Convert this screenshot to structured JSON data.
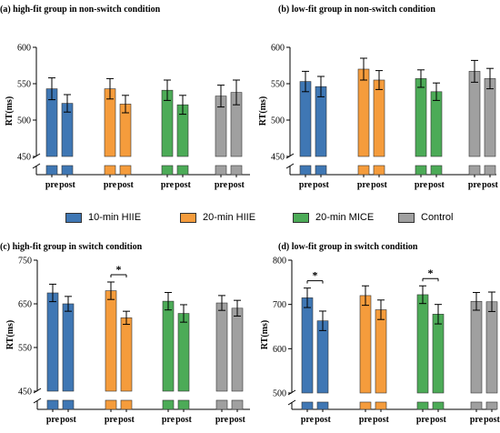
{
  "legend": {
    "items": [
      {
        "label": "10-min HIIE",
        "color": "#3f77b4"
      },
      {
        "label": "20-min HIIE",
        "color": "#f59c3c"
      },
      {
        "label": "20-min MICE",
        "color": "#4cab57"
      },
      {
        "label": "Control",
        "color": "#a0a0a0"
      }
    ]
  },
  "chart_data": [
    {
      "type": "bar",
      "title": "(a) high-fit group in non-switch condition",
      "ylabel": "RT(ms)",
      "ylim": [
        450,
        600
      ],
      "yticks": [
        450,
        500,
        550,
        600
      ],
      "x_tick_labels": [
        "pre",
        "post"
      ],
      "categories": [
        "10-min HIIE",
        "20-min HIIE",
        "20-min MICE",
        "Control"
      ],
      "series": [
        {
          "name": "pre",
          "values": [
            543,
            543,
            541,
            533
          ],
          "errors": [
            15,
            14,
            14,
            15
          ]
        },
        {
          "name": "post",
          "values": [
            523,
            522,
            521,
            538
          ],
          "errors": [
            12,
            12,
            13,
            17
          ]
        }
      ],
      "significance": []
    },
    {
      "type": "bar",
      "title": "(b) low-fit group in non-switch condition",
      "ylabel": "RT(ms)",
      "ylim": [
        450,
        600
      ],
      "yticks": [
        450,
        500,
        550,
        600
      ],
      "x_tick_labels": [
        "pre",
        "post"
      ],
      "categories": [
        "10-min HIIE",
        "20-min HIIE",
        "20-min MICE",
        "Control"
      ],
      "series": [
        {
          "name": "pre",
          "values": [
            553,
            570,
            557,
            567
          ],
          "errors": [
            14,
            15,
            12,
            15
          ]
        },
        {
          "name": "post",
          "values": [
            546,
            555,
            539,
            557
          ],
          "errors": [
            14,
            13,
            12,
            14
          ]
        }
      ],
      "significance": []
    },
    {
      "type": "bar",
      "title": "(c) high-fit group in switch condition",
      "ylabel": "RT(ms)",
      "ylim": [
        450,
        750
      ],
      "yticks": [
        450,
        550,
        650,
        750
      ],
      "x_tick_labels": [
        "pre",
        "post"
      ],
      "categories": [
        "10-min HIIE",
        "20-min HIIE",
        "20-min MICE",
        "Control"
      ],
      "series": [
        {
          "name": "pre",
          "values": [
            675,
            680,
            656,
            652
          ],
          "errors": [
            20,
            20,
            20,
            17
          ]
        },
        {
          "name": "post",
          "values": [
            650,
            618,
            628,
            640
          ],
          "errors": [
            17,
            15,
            20,
            18
          ]
        }
      ],
      "significance": [
        {
          "group": "20-min HIIE",
          "label": "*"
        }
      ]
    },
    {
      "type": "bar",
      "title": "(d) low-fit group in switch condition",
      "ylabel": "RT(ms)",
      "ylim": [
        500,
        800
      ],
      "yticks": [
        500,
        600,
        700,
        800
      ],
      "x_tick_labels": [
        "pre",
        "post"
      ],
      "categories": [
        "10-min HIIE",
        "20-min HIIE",
        "20-min MICE",
        "Control"
      ],
      "series": [
        {
          "name": "pre",
          "values": [
            715,
            720,
            722,
            707
          ],
          "errors": [
            22,
            22,
            20,
            20
          ]
        },
        {
          "name": "post",
          "values": [
            663,
            688,
            678,
            706
          ],
          "errors": [
            22,
            22,
            22,
            22
          ]
        }
      ],
      "significance": [
        {
          "group": "10-min HIIE",
          "label": "*"
        },
        {
          "group": "20-min MICE",
          "label": "*"
        }
      ]
    }
  ]
}
